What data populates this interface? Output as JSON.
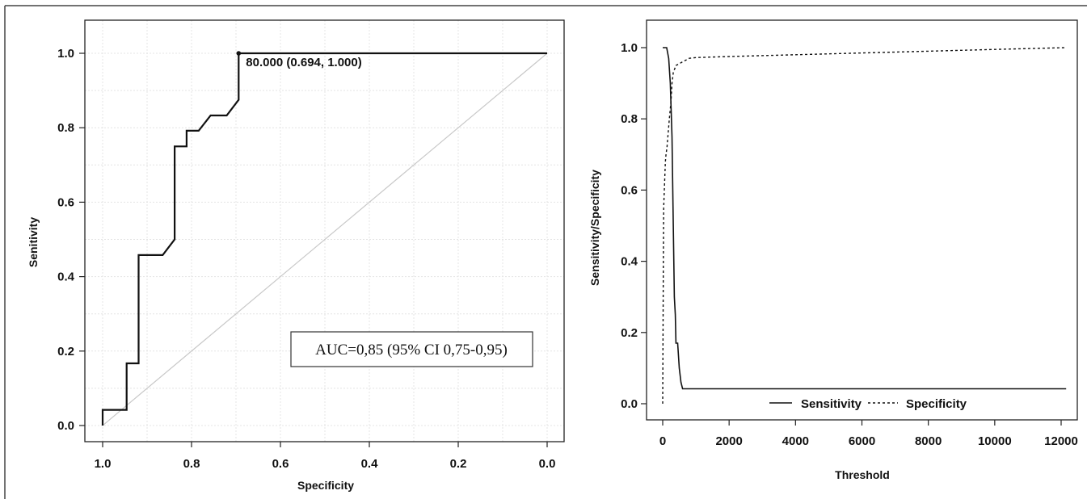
{
  "chart_data": [
    {
      "type": "line",
      "xlabel": "Specificity",
      "ylabel": "Senitivity",
      "x_reversed": true,
      "xlim": [
        1.0,
        0.0
      ],
      "ylim": [
        0.0,
        1.0
      ],
      "grid": true,
      "xticks": [
        "1.0",
        "0.8",
        "0.6",
        "0.4",
        "0.2",
        "0.0"
      ],
      "yticks": [
        "0.0",
        "0.2",
        "0.4",
        "0.6",
        "0.8",
        "1.0"
      ],
      "series": [
        {
          "specificity": [
            1.0,
            1.0,
            0.946,
            0.946,
            0.919,
            0.919,
            0.865,
            0.838,
            0.838,
            0.811,
            0.811,
            0.784,
            0.757,
            0.721,
            0.694,
            0.694,
            0.0
          ],
          "sensitivity": [
            0.0,
            0.042,
            0.042,
            0.167,
            0.167,
            0.458,
            0.458,
            0.5,
            0.75,
            0.75,
            0.792,
            0.792,
            0.833,
            0.833,
            0.875,
            1.0,
            1.0
          ]
        }
      ],
      "reference_line": {
        "from": [
          1.0,
          0.0
        ],
        "to": [
          0.0,
          1.0
        ]
      },
      "best_point": {
        "specificity": 0.694,
        "sensitivity": 1.0,
        "label": "80.000 (0.694, 1.000)"
      },
      "annotation": "AUC=0,85 (95% CI 0,75-0,95)"
    },
    {
      "type": "line",
      "xlabel": "Threshold",
      "ylabel": "Sensitivity/Specificity",
      "xlim": [
        0,
        12200
      ],
      "ylim": [
        0.0,
        1.0
      ],
      "xticks": [
        "0",
        "2000",
        "4000",
        "6000",
        "8000",
        "10000",
        "12000"
      ],
      "yticks": [
        "0.0",
        "0.2",
        "0.4",
        "0.6",
        "0.8",
        "1.0"
      ],
      "legend_position": "bottom-center",
      "series": [
        {
          "name": "Sensitivity",
          "style": "solid",
          "x": [
            0,
            120,
            180,
            230,
            280,
            320,
            350,
            380,
            400,
            420,
            450,
            500,
            550,
            600,
            12150
          ],
          "y": [
            1.0,
            1.0,
            0.97,
            0.9,
            0.75,
            0.5,
            0.3,
            0.25,
            0.17,
            0.17,
            0.17,
            0.1,
            0.06,
            0.042,
            0.042
          ]
        },
        {
          "name": "Specificity",
          "style": "dashed",
          "x": [
            0,
            20,
            30,
            80,
            100,
            130,
            200,
            250,
            280,
            320,
            400,
            600,
            800,
            1000,
            2000,
            4000,
            6000,
            8000,
            10000,
            12150
          ],
          "y": [
            0.0,
            0.4,
            0.55,
            0.68,
            0.7,
            0.72,
            0.8,
            0.85,
            0.9,
            0.93,
            0.95,
            0.96,
            0.97,
            0.972,
            0.975,
            0.98,
            0.985,
            0.99,
            0.995,
            1.0
          ]
        }
      ]
    }
  ]
}
